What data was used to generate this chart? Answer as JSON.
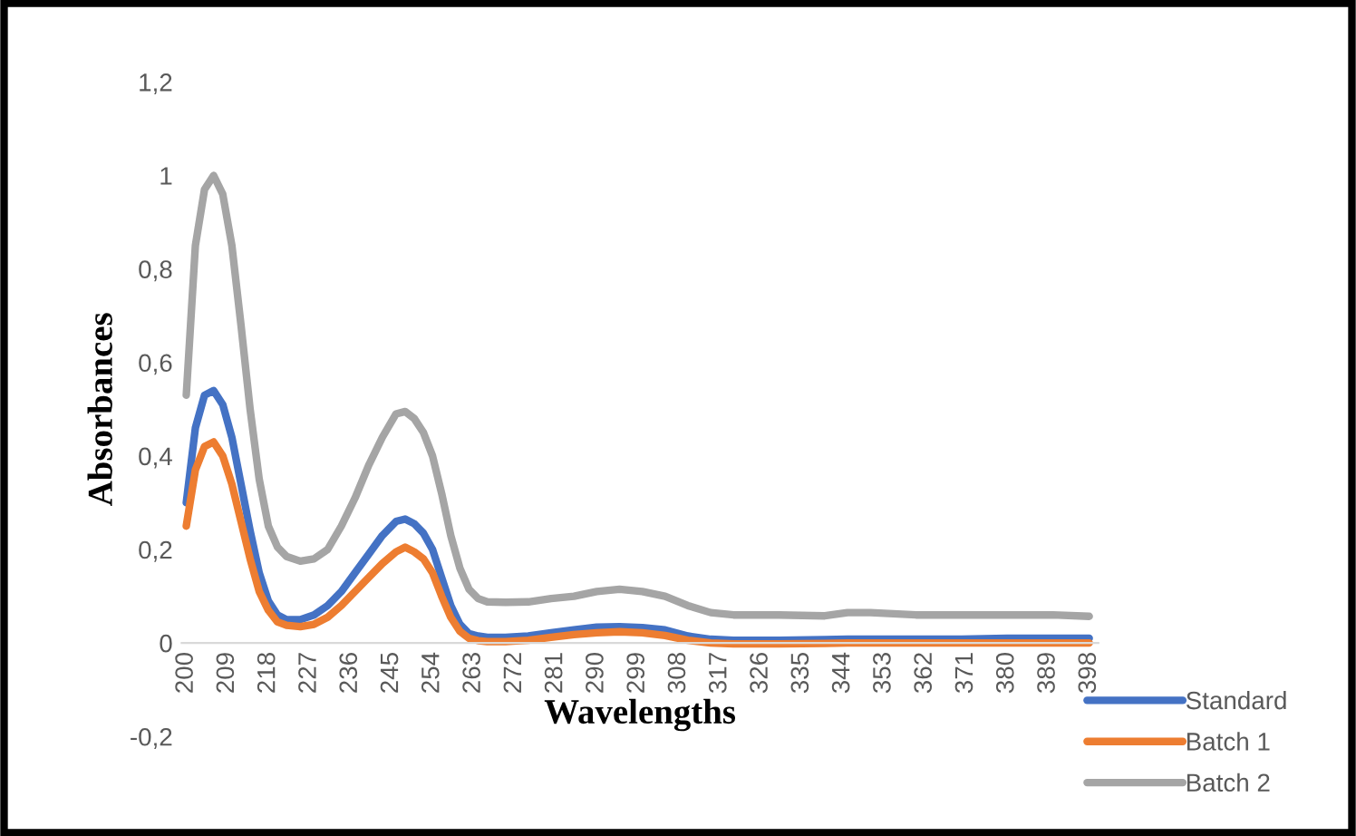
{
  "chart_data": {
    "type": "line",
    "xlabel": "Wavelengths",
    "ylabel": "Absorbances",
    "x": [
      200,
      202,
      204,
      206,
      208,
      210,
      212,
      214,
      216,
      218,
      220,
      222,
      225,
      228,
      231,
      234,
      237,
      240,
      243,
      246,
      248,
      250,
      252,
      254,
      256,
      258,
      260,
      262,
      264,
      266,
      270,
      275,
      280,
      285,
      290,
      295,
      300,
      305,
      310,
      315,
      320,
      330,
      340,
      345,
      350,
      360,
      370,
      380,
      390,
      398
    ],
    "series": [
      {
        "name": "Standard",
        "color": "#4472c4",
        "values": [
          0.3,
          0.46,
          0.53,
          0.54,
          0.51,
          0.44,
          0.34,
          0.24,
          0.15,
          0.09,
          0.06,
          0.05,
          0.05,
          0.06,
          0.08,
          0.11,
          0.15,
          0.19,
          0.23,
          0.26,
          0.265,
          0.255,
          0.235,
          0.2,
          0.14,
          0.08,
          0.04,
          0.02,
          0.015,
          0.012,
          0.012,
          0.015,
          0.022,
          0.028,
          0.034,
          0.035,
          0.033,
          0.028,
          0.015,
          0.008,
          0.006,
          0.006,
          0.007,
          0.008,
          0.008,
          0.008,
          0.008,
          0.01,
          0.01,
          0.01
        ]
      },
      {
        "name": "Batch 1",
        "color": "#ed7d31",
        "values": [
          0.25,
          0.37,
          0.42,
          0.43,
          0.4,
          0.34,
          0.26,
          0.18,
          0.11,
          0.07,
          0.045,
          0.038,
          0.035,
          0.04,
          0.055,
          0.08,
          0.11,
          0.14,
          0.17,
          0.195,
          0.205,
          0.195,
          0.18,
          0.15,
          0.1,
          0.055,
          0.025,
          0.01,
          0.005,
          0.003,
          0.003,
          0.006,
          0.012,
          0.018,
          0.022,
          0.024,
          0.022,
          0.016,
          0.006,
          0,
          -0.002,
          -0.002,
          -0.001,
          0,
          0,
          0,
          0,
          0,
          0,
          0
        ]
      },
      {
        "name": "Batch 2",
        "color": "#a5a5a5",
        "values": [
          0.53,
          0.85,
          0.97,
          1.0,
          0.96,
          0.85,
          0.68,
          0.5,
          0.35,
          0.25,
          0.205,
          0.185,
          0.175,
          0.18,
          0.2,
          0.25,
          0.31,
          0.38,
          0.44,
          0.49,
          0.495,
          0.48,
          0.45,
          0.4,
          0.32,
          0.23,
          0.16,
          0.115,
          0.095,
          0.088,
          0.087,
          0.088,
          0.095,
          0.1,
          0.11,
          0.115,
          0.11,
          0.1,
          0.08,
          0.065,
          0.06,
          0.06,
          0.058,
          0.065,
          0.065,
          0.06,
          0.06,
          0.06,
          0.06,
          0.057
        ]
      }
    ],
    "xlim": [
      199,
      400
    ],
    "xticks": [
      200,
      209,
      218,
      227,
      236,
      245,
      254,
      263,
      272,
      281,
      290,
      299,
      308,
      317,
      326,
      335,
      344,
      353,
      362,
      371,
      380,
      389,
      398
    ],
    "ylim": [
      -0.2,
      1.2
    ],
    "yticks": [
      {
        "value": -0.2,
        "label": "-0,2"
      },
      0,
      {
        "value": 0.2,
        "label": "0,2"
      },
      {
        "value": 0.4,
        "label": "0,4"
      },
      {
        "value": 0.6,
        "label": "0,6"
      },
      {
        "value": 0.8,
        "label": "0,8"
      },
      1,
      {
        "value": 1.2,
        "label": "1,2"
      }
    ],
    "grid": false,
    "legend": "bottom right",
    "line_style": "solid",
    "marker": "none"
  }
}
